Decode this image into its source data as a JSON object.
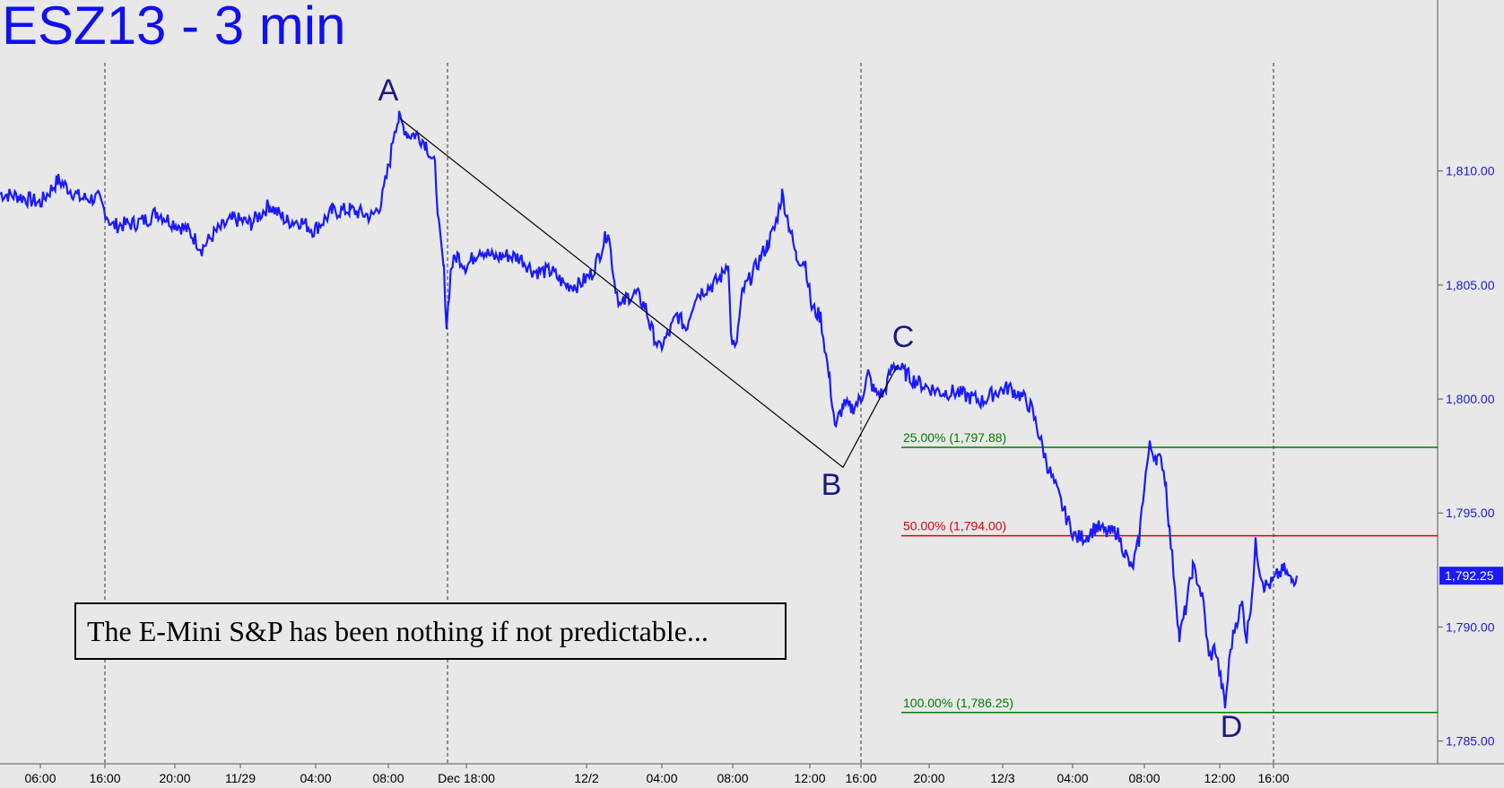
{
  "chart_data": {
    "type": "line",
    "title": "ESZ13 - 3 min",
    "annotation": "The E-Mini S&P has been nothing if not predictable...",
    "xlabels": [
      "06:00",
      "16:00",
      "20:00",
      "11/29",
      "04:00",
      "08:00",
      "Dec 18:00",
      "12/2",
      "04:00",
      "08:00",
      "12:00",
      "16:00",
      "20:00",
      "12/3",
      "04:00",
      "08:00",
      "12:00",
      "16:00"
    ],
    "yticks": [
      "1,785.00",
      "1,790.00",
      "1,795.00",
      "1,800.00",
      "1,805.00",
      "1,810.00"
    ],
    "ylim": [
      1784,
      1817.5
    ],
    "last_price": "1,792.25",
    "series": [
      {
        "color": "#1a1aff",
        "points": [
          [
            0,
            1809.0
          ],
          [
            20,
            1808.9
          ],
          [
            45,
            1808.6
          ],
          [
            65,
            1809.6
          ],
          [
            90,
            1808.8
          ],
          [
            110,
            1808.8
          ],
          [
            125,
            1807.6
          ],
          [
            150,
            1807.7
          ],
          [
            165,
            1807.9
          ],
          [
            175,
            1808.2
          ],
          [
            190,
            1807.8
          ],
          [
            210,
            1807.4
          ],
          [
            225,
            1806.6
          ],
          [
            240,
            1807.3
          ],
          [
            260,
            1807.9
          ],
          [
            280,
            1807.7
          ],
          [
            300,
            1808.5
          ],
          [
            320,
            1807.8
          ],
          [
            335,
            1807.8
          ],
          [
            350,
            1807.4
          ],
          [
            370,
            1808.2
          ],
          [
            390,
            1808.3
          ],
          [
            415,
            1808.0
          ],
          [
            425,
            1808.6
          ],
          [
            435,
            1810.5
          ],
          [
            440,
            1811.9
          ],
          [
            445,
            1812.3
          ],
          [
            455,
            1811.6
          ],
          [
            465,
            1811.6
          ],
          [
            475,
            1811.2
          ],
          [
            485,
            1810.2
          ],
          [
            490,
            1807.3
          ],
          [
            495,
            1805.6
          ],
          [
            498,
            1803.2
          ],
          [
            503,
            1805.8
          ],
          [
            510,
            1806.3
          ],
          [
            520,
            1805.8
          ],
          [
            535,
            1806.6
          ],
          [
            550,
            1806.2
          ],
          [
            565,
            1806.3
          ],
          [
            580,
            1806.2
          ],
          [
            595,
            1805.6
          ],
          [
            615,
            1805.6
          ],
          [
            630,
            1805.0
          ],
          [
            645,
            1805.0
          ],
          [
            660,
            1805.5
          ],
          [
            670,
            1806.5
          ],
          [
            678,
            1807.4
          ],
          [
            685,
            1805.2
          ],
          [
            692,
            1804.0
          ],
          [
            700,
            1804.5
          ],
          [
            710,
            1804.6
          ],
          [
            720,
            1804.0
          ],
          [
            725,
            1803.2
          ],
          [
            735,
            1802.2
          ],
          [
            745,
            1802.8
          ],
          [
            755,
            1803.7
          ],
          [
            765,
            1803.1
          ],
          [
            775,
            1804.5
          ],
          [
            785,
            1804.8
          ],
          [
            795,
            1805.0
          ],
          [
            805,
            1805.4
          ],
          [
            812,
            1806.1
          ],
          [
            815,
            1802.8
          ],
          [
            820,
            1802.1
          ],
          [
            828,
            1804.7
          ],
          [
            838,
            1805.4
          ],
          [
            848,
            1806.2
          ],
          [
            856,
            1806.8
          ],
          [
            864,
            1807.5
          ],
          [
            872,
            1809.0
          ],
          [
            880,
            1807.6
          ],
          [
            888,
            1806.2
          ],
          [
            898,
            1806.0
          ],
          [
            905,
            1804.0
          ],
          [
            915,
            1803.6
          ],
          [
            925,
            1800.8
          ],
          [
            932,
            1798.6
          ],
          [
            935,
            1799.2
          ],
          [
            940,
            1799.7
          ],
          [
            950,
            1799.6
          ],
          [
            960,
            1800.0
          ],
          [
            968,
            1801.1
          ],
          [
            975,
            1800.3
          ],
          [
            985,
            1800.2
          ],
          [
            995,
            1801.4
          ],
          [
            1000,
            1801.5
          ],
          [
            1010,
            1801.1
          ],
          [
            1020,
            1800.8
          ],
          [
            1035,
            1800.5
          ],
          [
            1050,
            1800.3
          ],
          [
            1065,
            1800.3
          ],
          [
            1080,
            1800.1
          ],
          [
            1095,
            1799.9
          ],
          [
            1110,
            1800.3
          ],
          [
            1125,
            1800.5
          ],
          [
            1140,
            1800.1
          ],
          [
            1150,
            1799.6
          ],
          [
            1158,
            1798.5
          ],
          [
            1168,
            1797.1
          ],
          [
            1180,
            1795.8
          ],
          [
            1190,
            1794.7
          ],
          [
            1200,
            1793.9
          ],
          [
            1212,
            1794.0
          ],
          [
            1222,
            1794.4
          ],
          [
            1235,
            1794.1
          ],
          [
            1245,
            1794.2
          ],
          [
            1255,
            1793.2
          ],
          [
            1262,
            1792.5
          ],
          [
            1270,
            1793.8
          ],
          [
            1276,
            1796.3
          ],
          [
            1282,
            1797.9
          ],
          [
            1290,
            1797.4
          ],
          [
            1296,
            1797.2
          ],
          [
            1300,
            1796.3
          ],
          [
            1304,
            1794.2
          ],
          [
            1310,
            1791.9
          ],
          [
            1315,
            1789.5
          ],
          [
            1322,
            1790.8
          ],
          [
            1330,
            1792.6
          ],
          [
            1336,
            1792.0
          ],
          [
            1342,
            1791.0
          ],
          [
            1348,
            1788.6
          ],
          [
            1355,
            1789.1
          ],
          [
            1362,
            1787.5
          ],
          [
            1366,
            1786.5
          ],
          [
            1372,
            1789.0
          ],
          [
            1378,
            1790.2
          ],
          [
            1385,
            1791.0
          ],
          [
            1390,
            1789.5
          ],
          [
            1396,
            1791.5
          ],
          [
            1400,
            1793.6
          ],
          [
            1405,
            1792.5
          ],
          [
            1410,
            1791.8
          ],
          [
            1418,
            1791.9
          ],
          [
            1425,
            1792.3
          ],
          [
            1432,
            1792.5
          ],
          [
            1440,
            1792.0
          ],
          [
            1446,
            1792.25
          ]
        ]
      }
    ],
    "wave_points": [
      {
        "label": "A",
        "value": 1812.3
      },
      {
        "label": "B",
        "value": 1797.0
      },
      {
        "label": "C",
        "value": 1801.5
      },
      {
        "label": "D",
        "value": 1786.25
      }
    ],
    "fib_levels": [
      {
        "label": "25.00% (1,797.88)",
        "value": 1797.88,
        "color": "#007a00"
      },
      {
        "label": "50.00% (1,794.00)",
        "value": 1794.0,
        "color": "#e00000"
      },
      {
        "label": "100.00% (1,786.25)",
        "value": 1786.25,
        "color": "#007a00"
      }
    ]
  }
}
